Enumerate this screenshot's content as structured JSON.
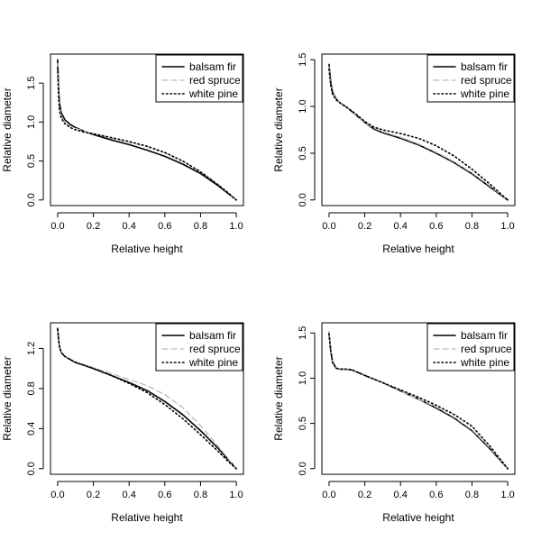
{
  "chart_data": [
    {
      "type": "line",
      "xlabel": "Relative height",
      "ylabel": "Relative diameter",
      "xlim": [
        0,
        1
      ],
      "ylim": [
        0,
        1.8
      ],
      "xticks": [
        "0.0",
        "0.2",
        "0.4",
        "0.6",
        "0.8",
        "1.0"
      ],
      "yticks": [
        "0.0",
        "0.5",
        "1.0",
        "1.5"
      ],
      "legend_position": "top-right",
      "series": [
        {
          "name": "balsam fir",
          "style": "solid",
          "color": "#000000",
          "x": [
            0,
            0.005,
            0.01,
            0.02,
            0.04,
            0.07,
            0.1,
            0.15,
            0.2,
            0.3,
            0.4,
            0.5,
            0.6,
            0.7,
            0.8,
            0.9,
            0.95,
            1.0
          ],
          "y": [
            1.8,
            1.45,
            1.25,
            1.12,
            1.03,
            0.97,
            0.93,
            0.88,
            0.84,
            0.77,
            0.71,
            0.64,
            0.56,
            0.46,
            0.34,
            0.18,
            0.09,
            0.0
          ]
        },
        {
          "name": "red spruce",
          "style": "dashed",
          "color": "#a7c4c4",
          "x": [
            0,
            0.005,
            0.01,
            0.02,
            0.04,
            0.07,
            0.1,
            0.15,
            0.2,
            0.3,
            0.4,
            0.5,
            0.6,
            0.7,
            0.8,
            0.9,
            0.95,
            1.0
          ],
          "y": [
            1.75,
            1.4,
            1.2,
            1.08,
            1.0,
            0.95,
            0.92,
            0.88,
            0.85,
            0.79,
            0.74,
            0.68,
            0.6,
            0.5,
            0.37,
            0.2,
            0.1,
            0.0
          ]
        },
        {
          "name": "white pine",
          "style": "dotted",
          "color": "#000000",
          "x": [
            0,
            0.005,
            0.01,
            0.02,
            0.04,
            0.07,
            0.1,
            0.15,
            0.2,
            0.3,
            0.4,
            0.5,
            0.6,
            0.7,
            0.8,
            0.9,
            0.95,
            1.0
          ],
          "y": [
            1.7,
            1.35,
            1.15,
            1.05,
            0.98,
            0.93,
            0.9,
            0.87,
            0.85,
            0.8,
            0.75,
            0.69,
            0.61,
            0.5,
            0.36,
            0.19,
            0.1,
            0.0
          ]
        }
      ]
    },
    {
      "type": "line",
      "xlabel": "Relative height",
      "ylabel": "Relative diameter",
      "xlim": [
        0,
        1
      ],
      "ylim": [
        0,
        1.5
      ],
      "xticks": [
        "0.0",
        "0.2",
        "0.4",
        "0.6",
        "0.8",
        "1.0"
      ],
      "yticks": [
        "0.0",
        "0.5",
        "1.0",
        "1.5"
      ],
      "legend_position": "top-right",
      "series": [
        {
          "name": "balsam fir",
          "style": "solid",
          "color": "#000000",
          "x": [
            0,
            0.01,
            0.02,
            0.04,
            0.06,
            0.1,
            0.15,
            0.2,
            0.25,
            0.3,
            0.4,
            0.5,
            0.6,
            0.7,
            0.8,
            0.9,
            1.0
          ],
          "y": [
            1.45,
            1.25,
            1.15,
            1.08,
            1.04,
            0.99,
            0.91,
            0.83,
            0.76,
            0.72,
            0.66,
            0.59,
            0.5,
            0.4,
            0.28,
            0.14,
            0.0
          ]
        },
        {
          "name": "red spruce",
          "style": "dashed",
          "color": "#a7c4c4",
          "x": [
            0,
            0.01,
            0.02,
            0.04,
            0.06,
            0.1,
            0.15,
            0.2,
            0.25,
            0.3,
            0.4,
            0.5,
            0.6,
            0.7,
            0.8,
            0.9,
            1.0
          ],
          "y": [
            1.42,
            1.23,
            1.14,
            1.08,
            1.04,
            0.99,
            0.91,
            0.83,
            0.77,
            0.73,
            0.67,
            0.6,
            0.51,
            0.41,
            0.29,
            0.15,
            0.0
          ]
        },
        {
          "name": "white pine",
          "style": "dotted",
          "color": "#000000",
          "x": [
            0,
            0.01,
            0.02,
            0.04,
            0.06,
            0.1,
            0.15,
            0.2,
            0.25,
            0.3,
            0.4,
            0.5,
            0.6,
            0.7,
            0.8,
            0.9,
            1.0
          ],
          "y": [
            1.4,
            1.22,
            1.13,
            1.07,
            1.04,
            0.99,
            0.92,
            0.84,
            0.78,
            0.75,
            0.71,
            0.66,
            0.58,
            0.47,
            0.33,
            0.17,
            0.0
          ]
        }
      ]
    },
    {
      "type": "line",
      "xlabel": "Relative height",
      "ylabel": "Relative diameter",
      "xlim": [
        0,
        1
      ],
      "ylim": [
        0,
        1.4
      ],
      "xticks": [
        "0.0",
        "0.2",
        "0.4",
        "0.6",
        "0.8",
        "1.0"
      ],
      "yticks": [
        "0.0",
        "0.4",
        "0.8",
        "1.2"
      ],
      "legend_position": "top-right",
      "series": [
        {
          "name": "balsam fir",
          "style": "solid",
          "color": "#000000",
          "x": [
            0,
            0.005,
            0.01,
            0.02,
            0.04,
            0.07,
            0.1,
            0.15,
            0.2,
            0.3,
            0.4,
            0.5,
            0.6,
            0.7,
            0.8,
            0.9,
            0.95,
            1.0
          ],
          "y": [
            1.4,
            1.3,
            1.22,
            1.16,
            1.12,
            1.09,
            1.06,
            1.03,
            1.0,
            0.93,
            0.86,
            0.78,
            0.67,
            0.54,
            0.38,
            0.2,
            0.1,
            0.0
          ]
        },
        {
          "name": "red spruce",
          "style": "dashed",
          "color": "#a7c4c4",
          "x": [
            0,
            0.005,
            0.01,
            0.02,
            0.04,
            0.07,
            0.1,
            0.15,
            0.2,
            0.3,
            0.4,
            0.5,
            0.6,
            0.7,
            0.8,
            0.9,
            0.95,
            1.0
          ],
          "y": [
            1.38,
            1.29,
            1.21,
            1.16,
            1.12,
            1.09,
            1.07,
            1.04,
            1.01,
            0.95,
            0.89,
            0.83,
            0.74,
            0.61,
            0.43,
            0.22,
            0.11,
            0.0
          ]
        },
        {
          "name": "white pine",
          "style": "dotted",
          "color": "#000000",
          "x": [
            0,
            0.005,
            0.01,
            0.02,
            0.04,
            0.07,
            0.1,
            0.15,
            0.2,
            0.3,
            0.4,
            0.5,
            0.6,
            0.7,
            0.8,
            0.9,
            0.95,
            1.0
          ],
          "y": [
            1.39,
            1.29,
            1.21,
            1.16,
            1.12,
            1.09,
            1.06,
            1.03,
            1.0,
            0.93,
            0.85,
            0.76,
            0.64,
            0.5,
            0.34,
            0.17,
            0.08,
            0.0
          ]
        }
      ]
    },
    {
      "type": "line",
      "xlabel": "Relative height",
      "ylabel": "Relative diameter",
      "xlim": [
        0,
        1
      ],
      "ylim": [
        0,
        1.55
      ],
      "xticks": [
        "0.0",
        "0.2",
        "0.4",
        "0.6",
        "0.8",
        "1.0"
      ],
      "yticks": [
        "0.0",
        "0.5",
        "1.0",
        "1.5"
      ],
      "legend_position": "top-right",
      "series": [
        {
          "name": "balsam fir",
          "style": "solid",
          "color": "#000000",
          "x": [
            0,
            0.01,
            0.02,
            0.04,
            0.06,
            0.1,
            0.13,
            0.2,
            0.3,
            0.4,
            0.5,
            0.6,
            0.7,
            0.8,
            0.9,
            1.0
          ],
          "y": [
            1.5,
            1.3,
            1.18,
            1.11,
            1.1,
            1.1,
            1.09,
            1.03,
            0.95,
            0.86,
            0.77,
            0.67,
            0.56,
            0.42,
            0.22,
            0.0
          ]
        },
        {
          "name": "red spruce",
          "style": "dashed",
          "color": "#a7c4c4",
          "x": [
            0,
            0.01,
            0.02,
            0.04,
            0.06,
            0.1,
            0.13,
            0.2,
            0.3,
            0.4,
            0.5,
            0.6,
            0.7,
            0.8,
            0.9,
            1.0
          ],
          "y": [
            1.52,
            1.32,
            1.19,
            1.12,
            1.1,
            1.1,
            1.09,
            1.03,
            0.95,
            0.86,
            0.77,
            0.68,
            0.57,
            0.43,
            0.23,
            0.0
          ]
        },
        {
          "name": "white pine",
          "style": "dotted",
          "color": "#000000",
          "x": [
            0,
            0.01,
            0.02,
            0.04,
            0.06,
            0.1,
            0.13,
            0.2,
            0.3,
            0.4,
            0.5,
            0.6,
            0.7,
            0.8,
            0.9,
            1.0
          ],
          "y": [
            1.49,
            1.29,
            1.17,
            1.11,
            1.1,
            1.1,
            1.09,
            1.03,
            0.95,
            0.87,
            0.79,
            0.7,
            0.6,
            0.47,
            0.25,
            0.0
          ]
        }
      ]
    }
  ]
}
